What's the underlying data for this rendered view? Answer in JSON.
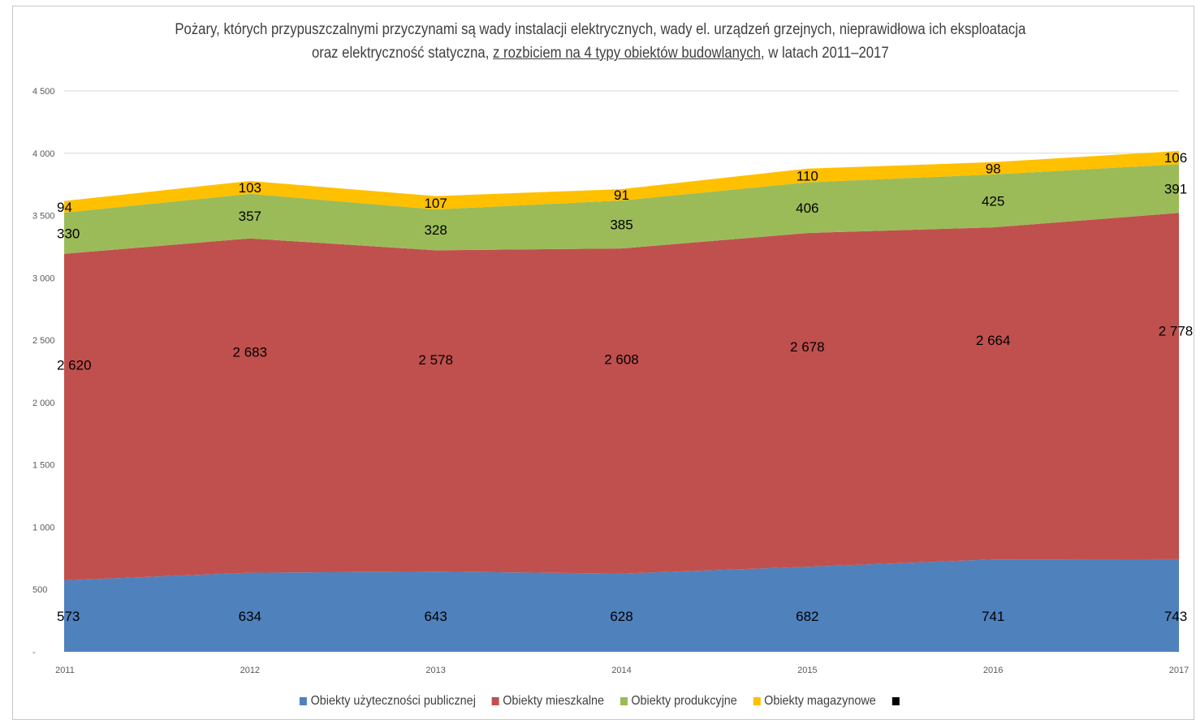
{
  "chart_data": {
    "type": "area",
    "stacked": true,
    "title_line1": "Pożary, których przypuszczalnymi przyczynami są wady instalacji elektrycznych, wady el. urządzeń grzejnych, nieprawidłowa ich eksploatacja",
    "title_line2_before": "oraz elektryczność statyczna, ",
    "title_line2_underlined": "z rozbiciem na 4 typy obiektów budowlanych",
    "title_line2_after": ", w latach 2011–2017",
    "x": [
      "2011",
      "2012",
      "2013",
      "2014",
      "2015",
      "2016",
      "2017"
    ],
    "ylim": [
      0,
      4500
    ],
    "y_ticks": [
      "-",
      "500",
      "1 000",
      "1 500",
      "2 000",
      "2 500",
      "3 000",
      "3 500",
      "4 000",
      "4 500"
    ],
    "grid": true,
    "legend_position": "bottom",
    "series": [
      {
        "name": "Obiekty użyteczności publicznej",
        "color": "#4f81bd",
        "values": [
          573,
          634,
          643,
          628,
          682,
          741,
          743
        ],
        "labels": [
          "573",
          "634",
          "643",
          "628",
          "682",
          "741",
          "743"
        ]
      },
      {
        "name": "Obiekty mieszkalne",
        "color": "#c0504d",
        "values": [
          2620,
          2683,
          2578,
          2608,
          2678,
          2664,
          2778
        ],
        "labels": [
          "2 620",
          "2 683",
          "2 578",
          "2 608",
          "2 678",
          "2 664",
          "2 778"
        ]
      },
      {
        "name": "Obiekty produkcyjne",
        "color": "#9bbb59",
        "values": [
          330,
          357,
          328,
          385,
          406,
          425,
          391
        ],
        "labels": [
          "330",
          "357",
          "328",
          "385",
          "406",
          "425",
          "391"
        ]
      },
      {
        "name": "Obiekty magazynowe",
        "color": "#ffc000",
        "values": [
          94,
          103,
          107,
          91,
          110,
          98,
          106
        ],
        "labels": [
          "94",
          "103",
          "107",
          "91",
          "110",
          "98",
          "106"
        ]
      }
    ],
    "extra_legend_swatch_color": "#000000"
  }
}
